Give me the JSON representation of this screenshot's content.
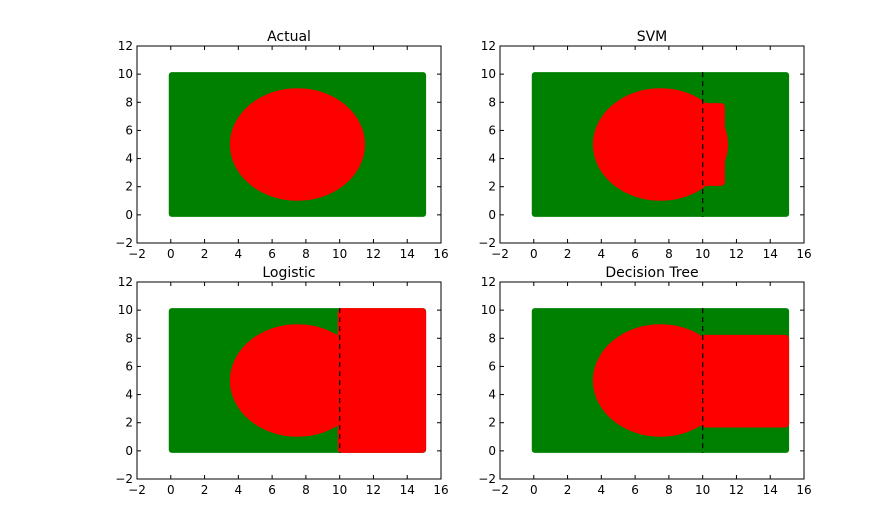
{
  "colors": {
    "background_class": "#008000",
    "circle_class": "#ff0000",
    "boundary": "#000000"
  },
  "chart_data": [
    {
      "type": "scatter",
      "title": "Actual",
      "xlim": [
        -2,
        16
      ],
      "ylim": [
        -2,
        12
      ],
      "xticks": [
        -2,
        0,
        2,
        4,
        6,
        8,
        10,
        12,
        14,
        16
      ],
      "yticks": [
        -2,
        0,
        2,
        4,
        6,
        8,
        10,
        12
      ],
      "grid": false,
      "region": {
        "x": [
          0,
          15
        ],
        "y": [
          0,
          10
        ]
      },
      "circle": {
        "center": [
          7.5,
          5
        ],
        "radius_x": 4,
        "radius_y": 4
      },
      "boundary_x": null,
      "red_band": null
    },
    {
      "type": "scatter",
      "title": "SVM",
      "xlim": [
        -2,
        16
      ],
      "ylim": [
        -2,
        12
      ],
      "xticks": [
        -2,
        0,
        2,
        4,
        6,
        8,
        10,
        12,
        14,
        16
      ],
      "yticks": [
        -2,
        0,
        2,
        4,
        6,
        8,
        10,
        12
      ],
      "grid": false,
      "region": {
        "x": [
          0,
          15
        ],
        "y": [
          0,
          10
        ]
      },
      "circle": {
        "center": [
          7.5,
          5
        ],
        "radius_x": 4,
        "radius_y": 4
      },
      "boundary_x": 10,
      "red_band": {
        "x": [
          10,
          11.2
        ],
        "y": [
          2.2,
          7.8
        ]
      }
    },
    {
      "type": "scatter",
      "title": "Logistic",
      "xlim": [
        -2,
        16
      ],
      "ylim": [
        -2,
        12
      ],
      "xticks": [
        -2,
        0,
        2,
        4,
        6,
        8,
        10,
        12,
        14,
        16
      ],
      "yticks": [
        -2,
        0,
        2,
        4,
        6,
        8,
        10,
        12
      ],
      "grid": false,
      "region": {
        "x": [
          0,
          15
        ],
        "y": [
          0,
          10
        ]
      },
      "circle": {
        "center": [
          7.5,
          5
        ],
        "radius_x": 4,
        "radius_y": 4
      },
      "boundary_x": 10,
      "red_band": {
        "x": [
          10,
          15
        ],
        "y": [
          0,
          10
        ]
      }
    },
    {
      "type": "scatter",
      "title": "Decision Tree",
      "xlim": [
        -2,
        16
      ],
      "ylim": [
        -2,
        12
      ],
      "xticks": [
        -2,
        0,
        2,
        4,
        6,
        8,
        10,
        12,
        14,
        16
      ],
      "yticks": [
        -2,
        0,
        2,
        4,
        6,
        8,
        10,
        12
      ],
      "grid": false,
      "region": {
        "x": [
          0,
          15
        ],
        "y": [
          0,
          10
        ]
      },
      "circle": {
        "center": [
          7.5,
          5
        ],
        "radius_x": 4,
        "radius_y": 4
      },
      "boundary_x": 10,
      "red_band": {
        "x": [
          10,
          15
        ],
        "y": [
          1.8,
          8.1
        ]
      }
    }
  ]
}
